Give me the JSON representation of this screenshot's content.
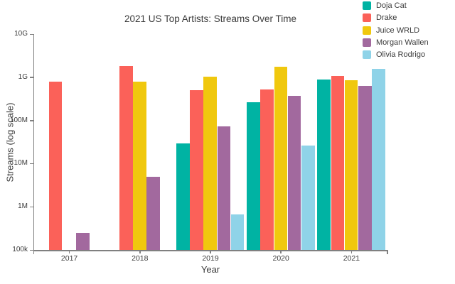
{
  "chart_data": {
    "type": "bar",
    "title": "2021 US Top Artists: Streams Over Time",
    "xlabel": "Year",
    "ylabel": "Streams (log scale)",
    "yscale": "log",
    "ylim": [
      100000,
      10000000000
    ],
    "y_tick_labels": [
      "100k",
      "1M",
      "10M",
      "100M",
      "1G",
      "10G"
    ],
    "grid": false,
    "legend_position": "top-right",
    "categories": [
      "2017",
      "2018",
      "2019",
      "2020",
      "2021"
    ],
    "series": [
      {
        "name": "Doja Cat",
        "color": "#00b3a3",
        "values": [
          null,
          null,
          29000000,
          265000000,
          900000000
        ]
      },
      {
        "name": "Drake",
        "color": "#fb6159",
        "values": [
          780000000,
          1800000000,
          510000000,
          530000000,
          1070000000
        ]
      },
      {
        "name": "Juice WRLD",
        "color": "#f0c80e",
        "values": [
          null,
          780000000,
          1050000000,
          1750000000,
          850000000
        ]
      },
      {
        "name": "Morgan Wallen",
        "color": "#a2699e",
        "values": [
          250000,
          4900000,
          73000000,
          370000000,
          640000000
        ]
      },
      {
        "name": "Olivia Rodrigo",
        "color": "#8fd3e8",
        "values": [
          null,
          null,
          660000,
          26000000,
          1550000000
        ]
      }
    ]
  },
  "style": {
    "axis_color": "#808080",
    "text_color": "#3b3b3b"
  }
}
